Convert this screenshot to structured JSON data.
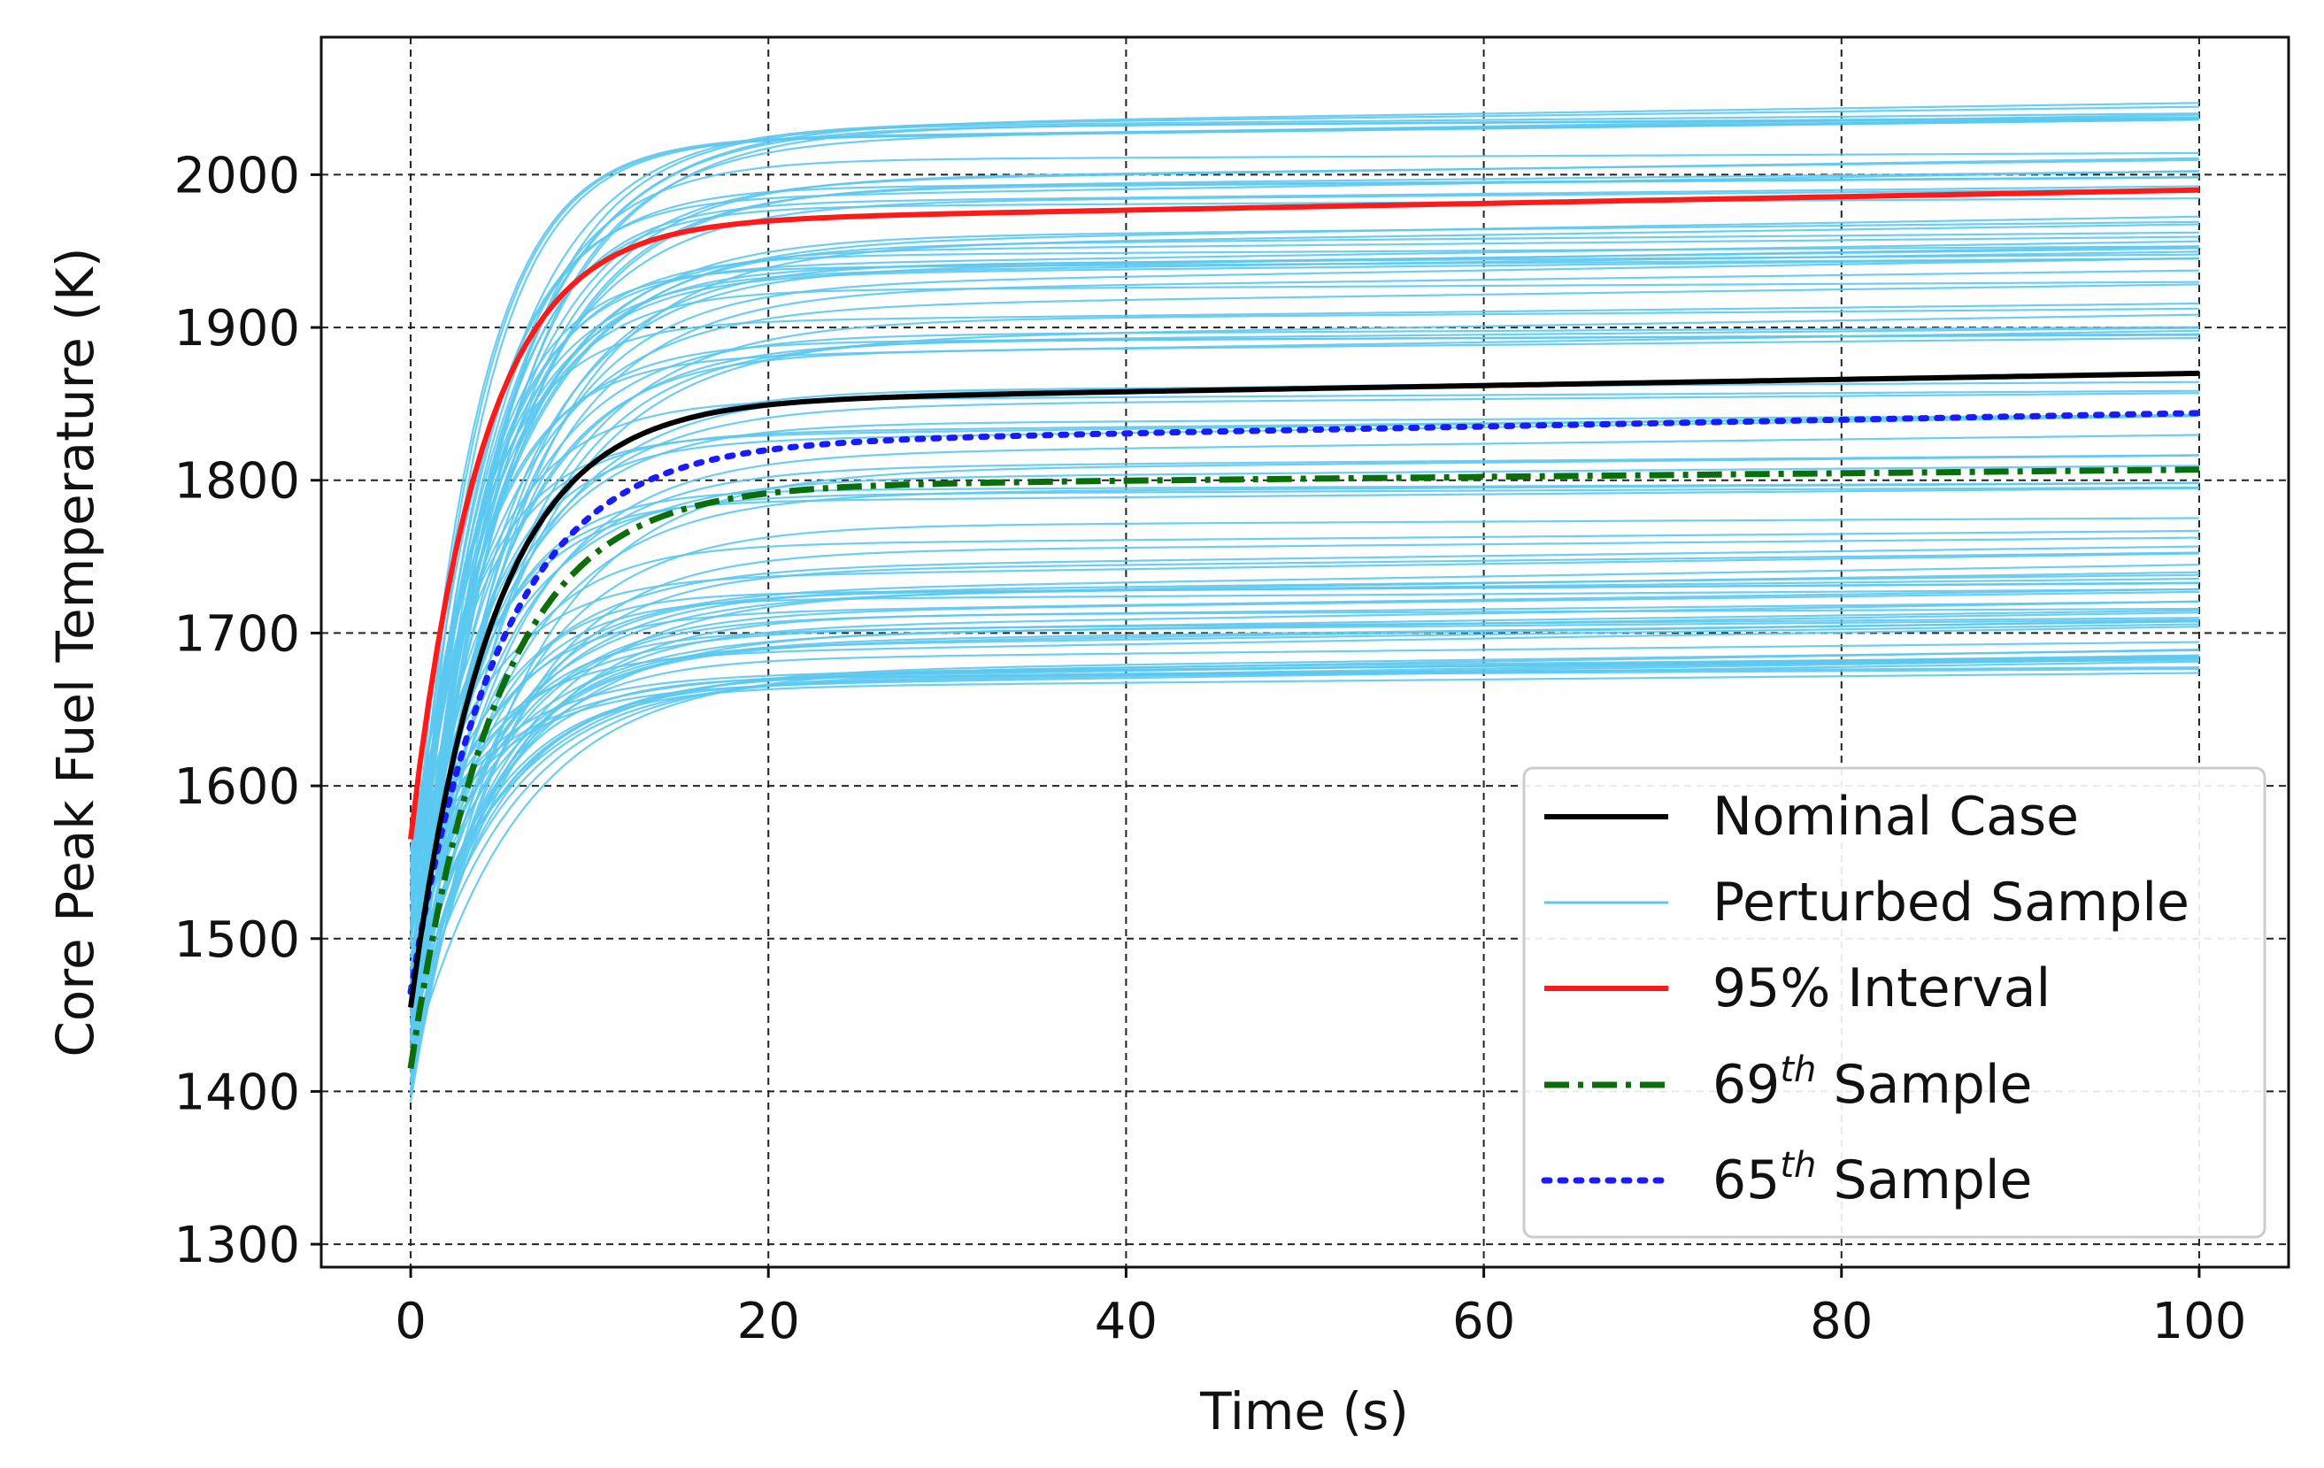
{
  "chart_data": {
    "type": "line",
    "title": "",
    "xlabel": "Time (s)",
    "ylabel": "Core Peak Fuel Temperature (K)",
    "xlim": [
      -5,
      105
    ],
    "ylim": [
      1285,
      2090
    ],
    "x_ticks": [
      0,
      20,
      40,
      60,
      80,
      100
    ],
    "y_ticks": [
      1300,
      1400,
      1500,
      1600,
      1700,
      1800,
      1900,
      2000
    ],
    "grid": true,
    "legend_position": "lower-right",
    "legend": {
      "nominal": "Nominal Case",
      "perturbed": "Perturbed Sample",
      "interval": "95% Interval",
      "s69_num": "69",
      "s65_num": "65",
      "sup": "th",
      "sample_word": "Sample"
    },
    "colors": {
      "nominal": "#000000",
      "perturbed": "#5bc8f0",
      "interval": "#ff1a1a",
      "s69": "#0b6e0b",
      "s65": "#1a1aff"
    },
    "series": [
      {
        "name": "Nominal Case",
        "y0": 1455,
        "plateau": 1850,
        "tau": 4.5,
        "slope": 0.2
      },
      {
        "name": "95% Interval",
        "y0": 1565,
        "plateau": 1968,
        "tau": 4.0,
        "slope": 0.22
      },
      {
        "name": "69th Sample",
        "y0": 1415,
        "plateau": 1795,
        "tau": 4.8,
        "slope": 0.12
      },
      {
        "name": "65th Sample",
        "y0": 1465,
        "plateau": 1822,
        "tau": 5.0,
        "slope": 0.22
      }
    ],
    "perturbed_samples": {
      "count": 100,
      "y0": [
        1320,
        1560
      ],
      "plateau": [
        1663,
        2030
      ],
      "tau": [
        3.5,
        6.0
      ]
    }
  }
}
